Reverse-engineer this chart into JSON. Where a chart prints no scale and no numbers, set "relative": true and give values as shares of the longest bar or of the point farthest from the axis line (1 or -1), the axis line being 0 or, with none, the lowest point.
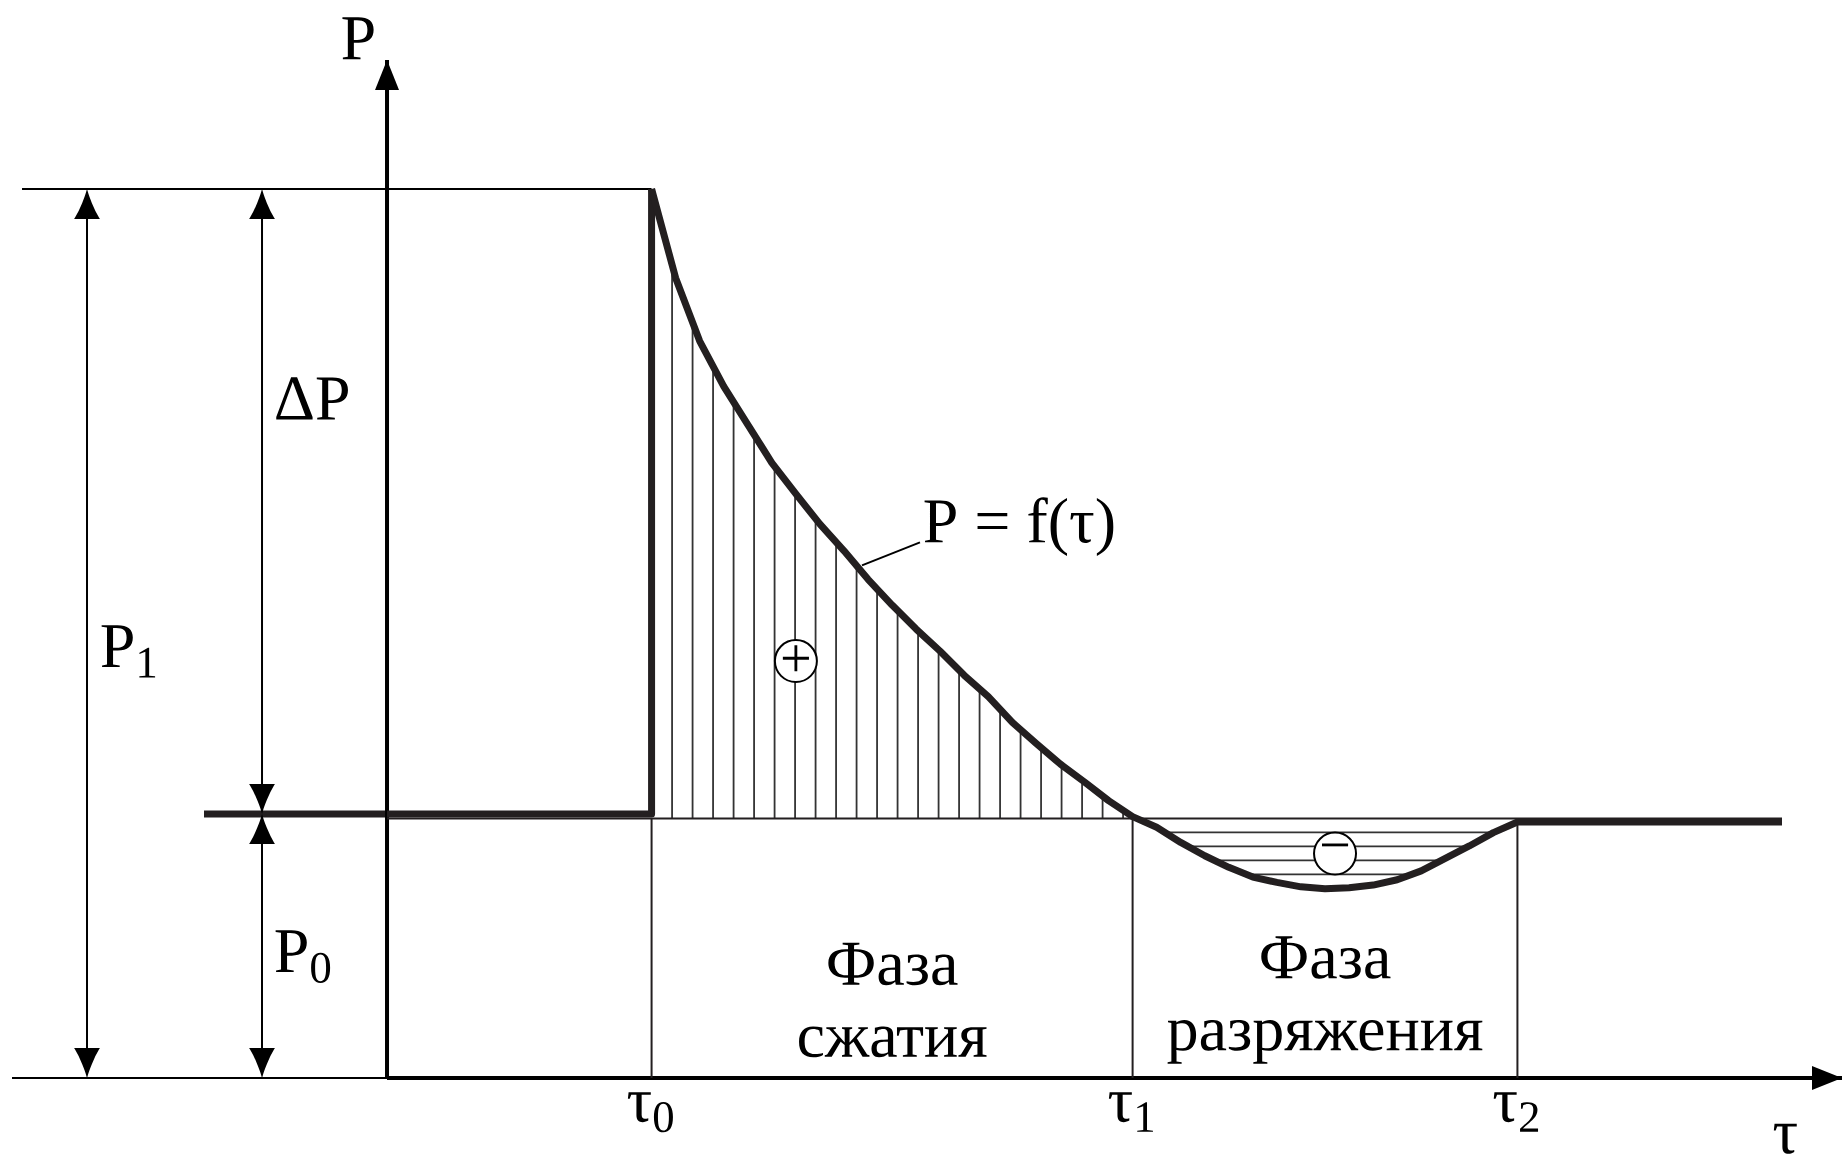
{
  "chart_data": {
    "type": "line",
    "relative": true,
    "xlabel": "τ",
    "ylabel": "P",
    "categories": [
      null,
      null,
      null,
      null,
      null,
      null,
      null,
      null,
      null,
      null,
      null,
      "τ$_{0}$",
      null,
      null,
      null,
      null,
      null,
      null,
      null,
      null,
      null,
      null,
      null,
      null,
      null,
      null,
      null,
      null,
      null,
      null,
      null,
      "τ$_{1}$",
      null,
      null,
      null,
      null,
      null,
      null,
      null,
      null,
      null,
      null,
      null,
      null,
      null,
      null,
      null,
      "τ$_{2}$",
      null,
      null,
      null,
      null,
      null,
      null,
      null,
      null,
      null,
      null,
      null
    ],
    "series": [
      {
        "type": "step",
        "color": "#231f20",
        "values": [
          0.297,
          0.297,
          0.297,
          0.297,
          0.297,
          0.297,
          0.297,
          0.297,
          0.297,
          0.297,
          0.297,
          1.0,
          null,
          null,
          null,
          null,
          null,
          null,
          null,
          null,
          null,
          null,
          null,
          null,
          null,
          null,
          null,
          null,
          null,
          null,
          null,
          null,
          null,
          null,
          null,
          null,
          null,
          null,
          null,
          null,
          null,
          null,
          null,
          null,
          null,
          null,
          null,
          null,
          null,
          null,
          null,
          null,
          null,
          null,
          null,
          null,
          null,
          null,
          null
        ]
      },
      {
        "color": "#231f20",
        "values": [
          null,
          null,
          null,
          null,
          null,
          null,
          null,
          null,
          null,
          null,
          null,
          1.0,
          0.9,
          0.829,
          0.778,
          0.735,
          0.692,
          0.657,
          0.623,
          0.593,
          0.561,
          0.532,
          0.505,
          0.48,
          0.453,
          0.429,
          0.4,
          0.376,
          0.353,
          0.333,
          0.312,
          0.294,
          0.282,
          0.265,
          0.25,
          0.237,
          0.226,
          0.22,
          0.215,
          0.213,
          0.214,
          0.217,
          0.223,
          0.233,
          0.247,
          0.261,
          0.276,
          0.288,
          0.288,
          0.288,
          0.288,
          0.288,
          0.288,
          0.288,
          0.288,
          0.288,
          0.288,
          0.288,
          0.288
        ]
      }
    ],
    "ref_lines": [
      {
        "axis": "y",
        "value": 0.292
      },
      {
        "axis": "x",
        "value": "τ$_{0}$"
      },
      {
        "axis": "x",
        "value": "τ$_{1}$"
      },
      {
        "axis": "x",
        "value": "τ$_{2}$"
      }
    ],
    "annotations": [
      "ΔP",
      "P$_{1}$",
      "P$_{0}$",
      "P = f(τ)",
      "+",
      "−",
      "Фаза сжатия",
      "Фаза разряжения"
    ]
  }
}
